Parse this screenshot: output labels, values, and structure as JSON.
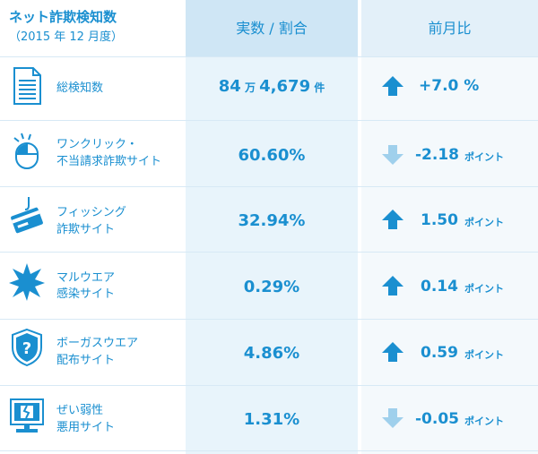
{
  "header": {
    "title": "ネット詐欺検知数",
    "subtitle": "（2015 年 12 月度）",
    "col_value": "実数 / 割合",
    "col_change": "前月比"
  },
  "rows": [
    {
      "icon": "document-icon",
      "label1": "総検知数",
      "label2": "",
      "value_main": "84",
      "value_unit1": "万",
      "value_rest": "4,679",
      "value_unit2": "件",
      "direction": "up",
      "change": "+7.0 %",
      "change_unit": ""
    },
    {
      "icon": "mouse-click-icon",
      "label1": "ワンクリック・",
      "label2": "不当請求詐欺サイト",
      "value": "60.60%",
      "direction": "down",
      "change": "-2.18",
      "change_unit": "ポイント"
    },
    {
      "icon": "credit-card-hook-icon",
      "label1": "フィッシング",
      "label2": "詐欺サイト",
      "value": "32.94%",
      "direction": "up",
      "change": "1.50",
      "change_unit": "ポイント"
    },
    {
      "icon": "malware-burst-icon",
      "label1": "マルウエア",
      "label2": "感染サイト",
      "value": "0.29%",
      "direction": "up",
      "change": "0.14",
      "change_unit": "ポイント"
    },
    {
      "icon": "shield-question-icon",
      "label1": "ボーガスウエア",
      "label2": "配布サイト",
      "value": "4.86%",
      "direction": "up",
      "change": "0.59",
      "change_unit": "ポイント"
    },
    {
      "icon": "broken-monitor-icon",
      "label1": "ぜい弱性",
      "label2": "悪用サイト",
      "value": "1.31%",
      "direction": "down",
      "change": "-0.05",
      "change_unit": "ポイント"
    }
  ],
  "colors": {
    "text": "#1a8fd0",
    "arrow_up": "#1a8fd0",
    "arrow_down": "#9fd0ec"
  }
}
